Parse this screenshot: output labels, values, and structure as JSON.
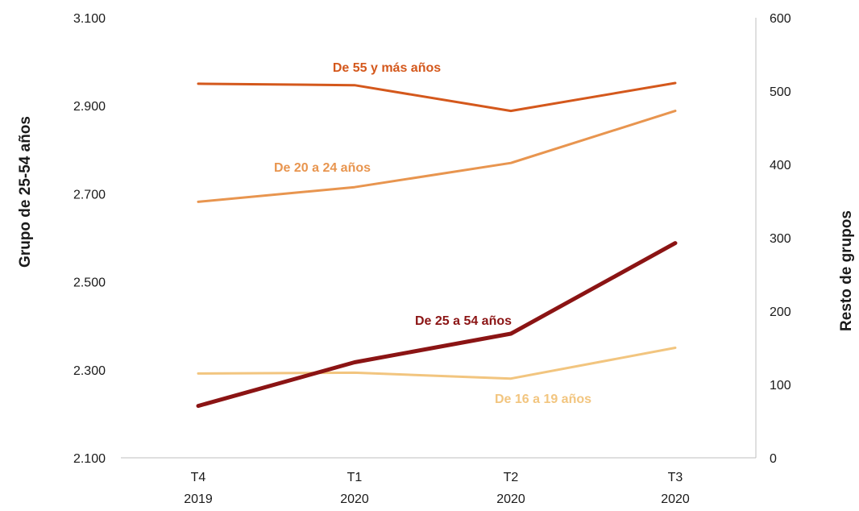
{
  "chart_data": {
    "type": "line",
    "categories": [
      {
        "line1": "T4",
        "line2": "2019"
      },
      {
        "line1": "T1",
        "line2": "2020"
      },
      {
        "line1": "T2",
        "line2": "2020"
      },
      {
        "line1": "T3",
        "line2": "2020"
      }
    ],
    "ylabel": "Grupo de 25-54 años",
    "y2label": "Resto de grupos",
    "ylim": [
      2100,
      3100
    ],
    "y2lim": [
      0,
      600
    ],
    "y_ticks": [
      "2.100",
      "2.300",
      "2.500",
      "2.700",
      "2.900",
      "3.100"
    ],
    "y2_ticks": [
      "0",
      "100",
      "200",
      "300",
      "400",
      "500",
      "600"
    ],
    "grid": false,
    "series": [
      {
        "name": "De 55 y más años",
        "axis": "right",
        "color": "#d4581c",
        "values": [
          510,
          508,
          473,
          511
        ]
      },
      {
        "name": "De 20 a 24 años",
        "axis": "right",
        "color": "#e8954f",
        "values": [
          349,
          369,
          402,
          473
        ]
      },
      {
        "name": "De 25 a 54 años",
        "axis": "left",
        "color": "#8b1414",
        "values": [
          2218,
          2317,
          2382,
          2588
        ]
      },
      {
        "name": "De 16 a 19 años",
        "axis": "right",
        "color": "#f2c57f",
        "values": [
          115,
          116,
          108,
          150
        ]
      }
    ]
  }
}
